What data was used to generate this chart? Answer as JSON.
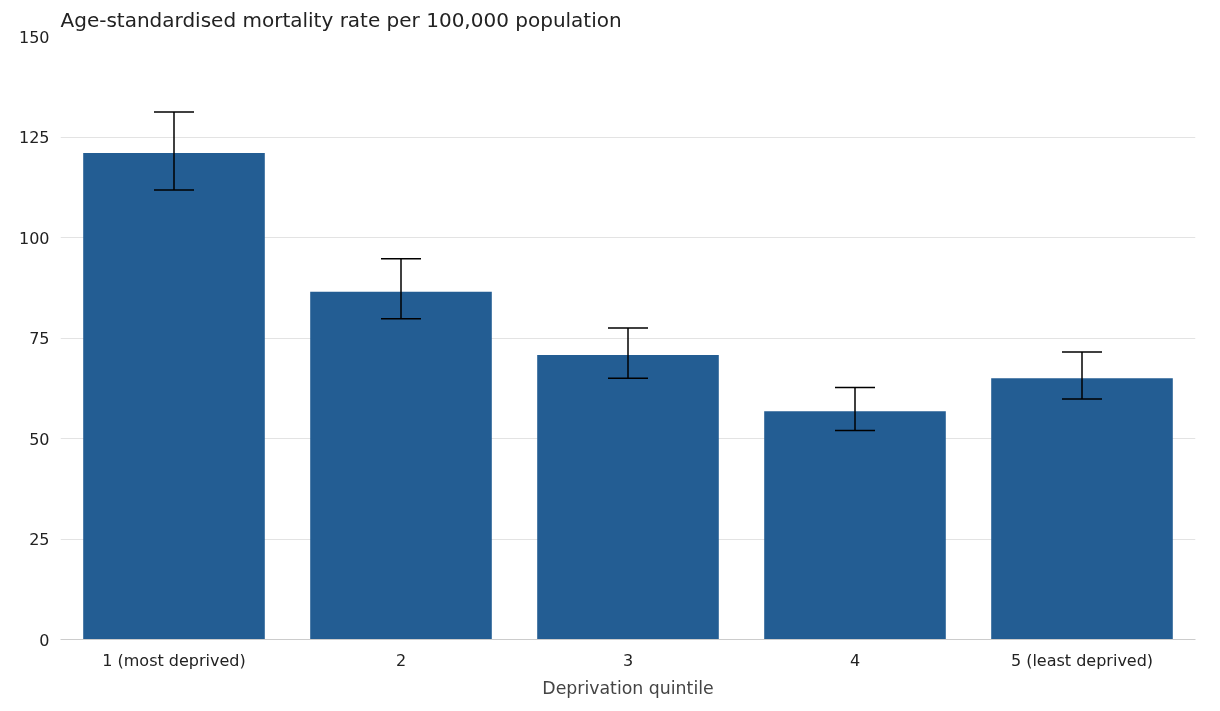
{
  "chart_data": {
    "type": "bar",
    "title": "Age-standardised mortality rate per 100,000 population",
    "xlabel": "Deprivation quintile",
    "categories": [
      "1 (most deprived)",
      "2",
      "3",
      "4",
      "5 (least deprived)"
    ],
    "values": [
      121,
      86.5,
      70.8,
      56.8,
      65
    ],
    "errors": [
      [
        111.8,
        131.2
      ],
      [
        79.8,
        94.7
      ],
      [
        65,
        77.5
      ],
      [
        52,
        62.7
      ],
      [
        59.8,
        71.5
      ]
    ],
    "color": "#235d93",
    "ylim": [
      0,
      150
    ],
    "yticks": [
      0,
      25,
      50,
      75,
      100,
      125,
      150
    ],
    "grid": "y"
  }
}
